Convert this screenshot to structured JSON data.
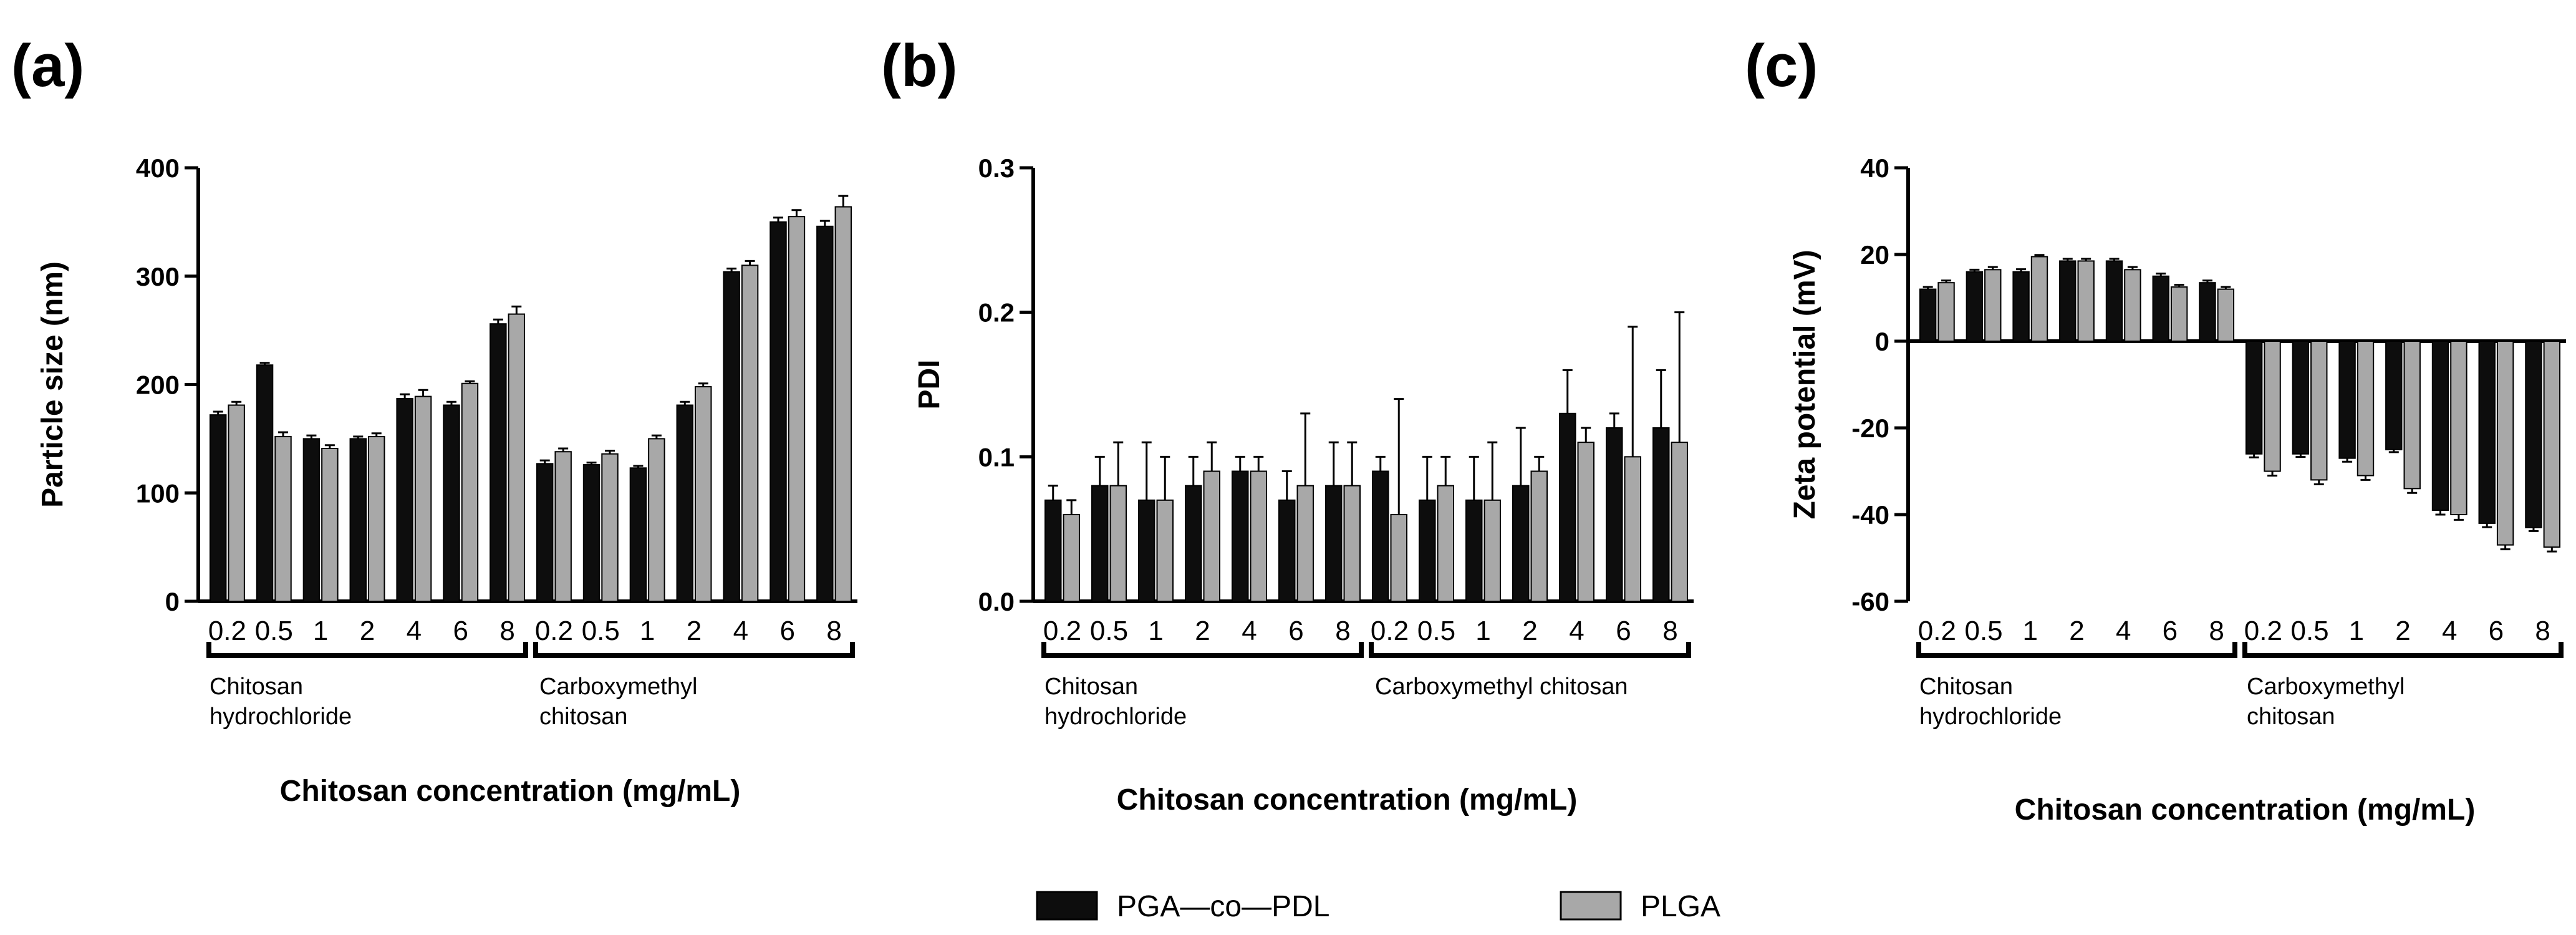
{
  "colors": {
    "series1": "#0d0d0d",
    "series2": "#a8a8a8",
    "axis": "#000000",
    "background": "#ffffff"
  },
  "legend": [
    {
      "name": "PGA—co—PDL",
      "color": "#0d0d0d"
    },
    {
      "name": "PLGA",
      "color": "#a8a8a8"
    }
  ],
  "chart_data": [
    {
      "panel": "(a)",
      "type": "bar",
      "ylabel": "Particle size (nm)",
      "xlabel": "Chitosan concentration (mg/mL)",
      "ylim": [
        0,
        400
      ],
      "yticks": [
        "0",
        "100",
        "200",
        "300",
        "400"
      ],
      "ytick_values": [
        0,
        100,
        200,
        300,
        400
      ],
      "categories": [
        "0.2",
        "0.5",
        "1",
        "2",
        "4",
        "6",
        "8",
        "0.2",
        "0.5",
        "1",
        "2",
        "4",
        "6",
        "8"
      ],
      "groups": [
        {
          "label_lines": [
            "Chitosan",
            "hydrochloride"
          ]
        },
        {
          "label_lines": [
            "Carboxymethyl",
            "chitosan"
          ]
        }
      ],
      "series": [
        {
          "name": "PGA—co—PDL",
          "values": [
            172,
            218,
            150,
            150,
            187,
            181,
            256,
            127,
            126,
            123,
            181,
            304,
            350,
            346
          ],
          "errors": [
            3,
            2,
            3,
            2,
            4,
            3,
            4,
            3,
            2,
            2,
            3,
            3,
            4,
            5
          ]
        },
        {
          "name": "PLGA",
          "values": [
            181,
            152,
            141,
            152,
            189,
            201,
            265,
            138,
            136,
            150,
            198,
            310,
            355,
            364
          ],
          "errors": [
            3,
            4,
            3,
            3,
            6,
            2,
            7,
            3,
            3,
            3,
            3,
            4,
            6,
            10
          ]
        }
      ]
    },
    {
      "panel": "(b)",
      "type": "bar",
      "ylabel": "PDI",
      "xlabel": "Chitosan concentration (mg/mL)",
      "ylim": [
        0,
        0.3
      ],
      "yticks": [
        "0.0",
        "0.1",
        "0.2",
        "0.3"
      ],
      "ytick_values": [
        0,
        0.1,
        0.2,
        0.3
      ],
      "categories": [
        "0.2",
        "0.5",
        "1",
        "2",
        "4",
        "6",
        "8",
        "0.2",
        "0.5",
        "1",
        "2",
        "4",
        "6",
        "8"
      ],
      "groups": [
        {
          "label_lines": [
            "Chitosan",
            "hydrochloride"
          ]
        },
        {
          "label_lines": [
            "Carboxymethyl chitosan"
          ]
        }
      ],
      "series": [
        {
          "name": "PGA—co—PDL",
          "values": [
            0.07,
            0.08,
            0.07,
            0.08,
            0.09,
            0.07,
            0.08,
            0.09,
            0.07,
            0.07,
            0.08,
            0.13,
            0.12,
            0.12
          ],
          "errors": [
            0.01,
            0.02,
            0.04,
            0.02,
            0.01,
            0.02,
            0.03,
            0.01,
            0.03,
            0.03,
            0.04,
            0.03,
            0.01,
            0.04
          ]
        },
        {
          "name": "PLGA",
          "values": [
            0.06,
            0.08,
            0.07,
            0.09,
            0.09,
            0.08,
            0.08,
            0.06,
            0.08,
            0.07,
            0.09,
            0.11,
            0.1,
            0.11
          ],
          "errors": [
            0.01,
            0.03,
            0.03,
            0.02,
            0.01,
            0.05,
            0.03,
            0.08,
            0.02,
            0.04,
            0.01,
            0.01,
            0.09,
            0.09
          ]
        }
      ]
    },
    {
      "panel": "(c)",
      "type": "bar",
      "ylabel": "Zeta potential (mV)",
      "xlabel": "Chitosan concentration (mg/mL)",
      "ylim": [
        -60,
        40
      ],
      "yticks": [
        "-60",
        "-40",
        "-20",
        "0",
        "20",
        "40"
      ],
      "ytick_values": [
        -60,
        -40,
        -20,
        0,
        20,
        40
      ],
      "categories": [
        "0.2",
        "0.5",
        "1",
        "2",
        "4",
        "6",
        "8",
        "0.2",
        "0.5",
        "1",
        "2",
        "4",
        "6",
        "8"
      ],
      "groups": [
        {
          "label_lines": [
            "Chitosan",
            "hydrochloride"
          ]
        },
        {
          "label_lines": [
            "Carboxymethyl",
            "chitosan"
          ]
        }
      ],
      "series": [
        {
          "name": "PGA—co—PDL",
          "values": [
            12,
            16,
            16,
            18.5,
            18.5,
            15,
            13.5,
            -26,
            -26,
            -27,
            -25,
            -39,
            -42,
            -43
          ],
          "errors": [
            0.5,
            0.5,
            0.6,
            0.5,
            0.5,
            0.6,
            0.5,
            0.8,
            0.7,
            0.8,
            0.6,
            1.0,
            0.9,
            0.8
          ]
        },
        {
          "name": "PLGA",
          "values": [
            13.5,
            16.5,
            19.5,
            18.5,
            16.5,
            12.5,
            12,
            -30,
            -32,
            -31,
            -34,
            -40,
            -47,
            -47.5
          ],
          "errors": [
            0.5,
            0.6,
            0.4,
            0.5,
            0.6,
            0.5,
            0.5,
            1.0,
            1.0,
            1.0,
            1.0,
            1.2,
            1.0,
            1.0
          ]
        }
      ]
    }
  ]
}
